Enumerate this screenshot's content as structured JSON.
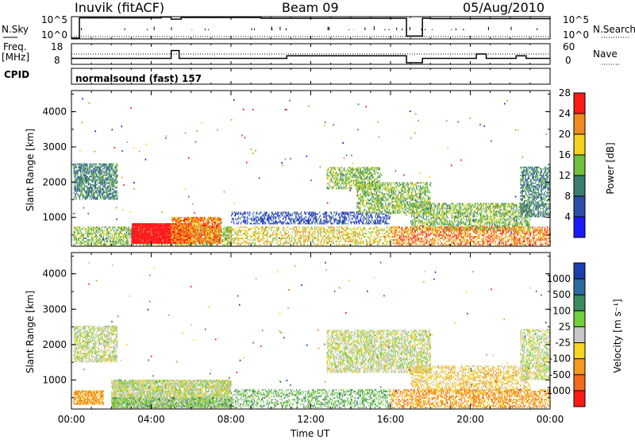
{
  "header": {
    "station": "Inuvik (fitACF)",
    "beam": "Beam 09",
    "date": "05/Aug/2010"
  },
  "top_panels": {
    "nsky_label": "N.Sky",
    "nsky_ticks": [
      "10^5",
      "10^0"
    ],
    "nsearch_label": "N.Search",
    "nsearch_ticks": [
      "10^5",
      "10^0"
    ],
    "freq_label": "Freq.",
    "freq_unit": "[MHz]",
    "freq_ticks": [
      "18",
      "8"
    ],
    "nave_label": "Nave",
    "nave_ticks": [
      "60",
      "0"
    ],
    "cpid_label": "CPID",
    "cpid_value": "normalsound (fast) 157"
  },
  "axes": {
    "xlabel": "Time UT",
    "x_ticks": [
      "00:00",
      "04:00",
      "08:00",
      "12:00",
      "16:00",
      "20:00",
      "00:00"
    ],
    "ylabel": "Slant Range [km]",
    "y_ticks": [
      "1000",
      "2000",
      "3000",
      "4000"
    ]
  },
  "power_colorbar": {
    "label": "Power [dB]",
    "ticks": [
      "4",
      "8",
      "12",
      "16",
      "20",
      "24",
      "28"
    ],
    "colors": [
      "#1a1aff",
      "#2c4fa8",
      "#3a7d6e",
      "#6fc03c",
      "#f3d21f",
      "#f28b1f",
      "#ff1a1a"
    ]
  },
  "velocity_colorbar": {
    "label": "Velocity [m s⁻¹]",
    "ticks": [
      "1000",
      "500",
      "100",
      "25",
      "-25",
      "-100",
      "-500",
      "-1000"
    ],
    "colors": [
      "#1a3fb0",
      "#2f6a9e",
      "#3c8a5e",
      "#6fcf3d",
      "#c8c8c8",
      "#f4d520",
      "#f39a1f",
      "#f36a1f",
      "#ff1a1a"
    ]
  },
  "chart_data": [
    {
      "type": "line",
      "title": "N.Sky / N.Search",
      "x_hours": [
        0,
        0.4,
        4.5,
        5.0,
        5.5,
        9.5,
        16.8,
        17.2,
        17.6,
        18.0,
        24
      ],
      "nsky_log10": [
        0,
        4.9,
        5.1,
        4.6,
        5.0,
        4.8,
        0.5,
        0.5,
        4.8,
        4.7,
        4.8
      ],
      "ylim": [
        0,
        5
      ]
    },
    {
      "type": "line",
      "title": "Freq. / Nave",
      "x_hours": [
        0,
        4.6,
        5.0,
        5.4,
        10.0,
        10.8,
        16.8,
        17.2,
        17.6,
        18.0,
        20.3,
        20.8,
        22.3,
        22.8,
        24
      ],
      "freq_mhz": [
        10.5,
        10.5,
        15,
        10.5,
        10.5,
        12,
        8,
        8,
        10.5,
        10.5,
        13,
        10.5,
        12,
        10.5,
        10.5
      ],
      "ylim": [
        8,
        18
      ]
    },
    {
      "type": "heatmap",
      "title": "Power",
      "xlabel": "Time UT",
      "ylabel": "Slant Range [km]",
      "xlim_hours": [
        0,
        24
      ],
      "ylim_km": [
        180,
        4600
      ],
      "colorbar_label": "Power [dB]",
      "regions": [
        {
          "t0": 0.1,
          "t1": 2.3,
          "r0": 1500,
          "r1": 2500,
          "level": 2,
          "density": 0.55
        },
        {
          "t0": 0.1,
          "t1": 8.0,
          "r0": 200,
          "r1": 700,
          "level": 3,
          "density": 0.45
        },
        {
          "t0": 3.0,
          "t1": 6.0,
          "r0": 250,
          "r1": 800,
          "level": 7,
          "density": 0.92
        },
        {
          "t0": 5.0,
          "t1": 7.5,
          "r0": 250,
          "r1": 1000,
          "level": 5,
          "density": 0.75
        },
        {
          "t0": 7.8,
          "t1": 16.0,
          "r0": 200,
          "r1": 700,
          "level": 4,
          "density": 0.32
        },
        {
          "t0": 8.0,
          "t1": 16.0,
          "r0": 800,
          "r1": 1150,
          "level": 1,
          "density": 0.35
        },
        {
          "t0": 12.8,
          "t1": 15.5,
          "r0": 1800,
          "r1": 2400,
          "level": 3,
          "density": 0.48
        },
        {
          "t0": 14.3,
          "t1": 18.0,
          "r0": 1100,
          "r1": 2000,
          "level": 3,
          "density": 0.45
        },
        {
          "t0": 17.0,
          "t1": 23.0,
          "r0": 600,
          "r1": 1400,
          "level": 3,
          "density": 0.45
        },
        {
          "t0": 16.0,
          "t1": 24.0,
          "r0": 200,
          "r1": 700,
          "level": 5,
          "density": 0.45
        },
        {
          "t0": 22.5,
          "t1": 24.0,
          "r0": 1000,
          "r1": 2400,
          "level": 2,
          "density": 0.5
        }
      ]
    },
    {
      "type": "heatmap",
      "title": "Velocity",
      "xlabel": "Time UT",
      "ylabel": "Slant Range [km]",
      "xlim_hours": [
        0,
        24
      ],
      "ylim_km": [
        180,
        4600
      ],
      "colorbar_label": "Velocity [m s⁻¹]",
      "regions": [
        {
          "t0": 0.1,
          "t1": 2.3,
          "r0": 1500,
          "r1": 2500,
          "level": 4,
          "density": 0.5
        },
        {
          "t0": 0.1,
          "t1": 1.6,
          "r0": 300,
          "r1": 700,
          "level": 6,
          "density": 0.7
        },
        {
          "t0": 2.0,
          "t1": 8.0,
          "r0": 200,
          "r1": 1000,
          "level": 4,
          "density": 0.75
        },
        {
          "t0": 2.0,
          "t1": 8.0,
          "r0": 200,
          "r1": 500,
          "level": 3,
          "density": 0.5
        },
        {
          "t0": 8.0,
          "t1": 16.0,
          "r0": 200,
          "r1": 700,
          "level": 3,
          "density": 0.35
        },
        {
          "t0": 12.8,
          "t1": 18.0,
          "r0": 1200,
          "r1": 2400,
          "level": 4,
          "density": 0.5
        },
        {
          "t0": 17.0,
          "t1": 23.0,
          "r0": 600,
          "r1": 1400,
          "level": 5,
          "density": 0.38
        },
        {
          "t0": 16.0,
          "t1": 24.0,
          "r0": 200,
          "r1": 700,
          "level": 6,
          "density": 0.42
        },
        {
          "t0": 22.5,
          "t1": 24.0,
          "r0": 1000,
          "r1": 2400,
          "level": 4,
          "density": 0.45
        }
      ]
    }
  ]
}
